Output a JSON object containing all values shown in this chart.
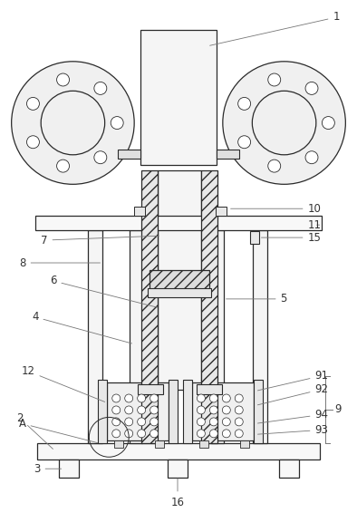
{
  "bg_color": "#ffffff",
  "line_color": "#2a2a2a",
  "label_color": "#333333",
  "figsize": [
    3.94,
    5.87
  ],
  "dpi": 100
}
